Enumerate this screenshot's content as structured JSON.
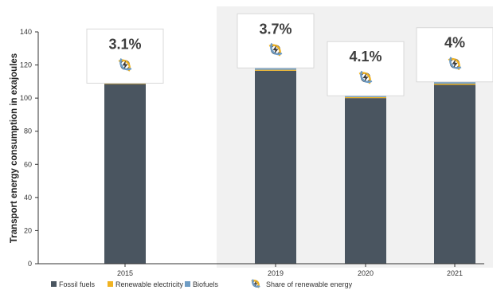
{
  "chart_data": {
    "type": "bar",
    "stacked": true,
    "ylabel": "Transport energy consumption in exajoules",
    "xlabel": "",
    "ylim": [
      0,
      140
    ],
    "yticks": [
      0,
      20,
      40,
      60,
      80,
      100,
      120,
      140
    ],
    "categories": [
      "2015",
      "2019",
      "2020",
      "2021"
    ],
    "series": [
      {
        "name": "Fossil fuels",
        "color": "#4a5560",
        "values": [
          108.5,
          116.5,
          100,
          108
        ]
      },
      {
        "name": "Renewable electricity",
        "color": "#f0b323",
        "values": [
          0.4,
          0.6,
          0.6,
          0.7
        ]
      },
      {
        "name": "Biofuels",
        "color": "#6e9cc4",
        "values": [
          3,
          4,
          3.7,
          4
        ]
      }
    ],
    "share_label": "Share of renewable energy",
    "shares": [
      "3.1%",
      "3.7%",
      "4.1%",
      "4%"
    ],
    "shaded_region_categories": [
      "2019",
      "2020",
      "2021"
    ],
    "grid": false,
    "legend_position": "bottom"
  },
  "icons": {
    "share_icon": "renewable-energy-icon"
  }
}
